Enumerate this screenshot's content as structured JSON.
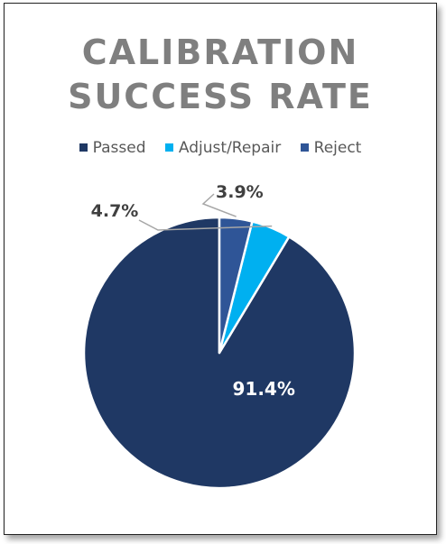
{
  "chart_data": {
    "type": "pie",
    "title": "CALIBRATION SUCCESS RATE",
    "title_lines": [
      "CALIBRATION",
      "SUCCESS RATE"
    ],
    "categories": [
      "Passed",
      "Adjust/Repair",
      "Reject"
    ],
    "values": [
      91.4,
      4.7,
      3.9
    ],
    "data_labels": [
      "91.4%",
      "4.7%",
      "3.9%"
    ],
    "colors": [
      "#1f3864",
      "#00b0f0",
      "#2f5597"
    ],
    "legend_position": "top",
    "start_angle": "12 o'clock, counter-clockwise"
  }
}
